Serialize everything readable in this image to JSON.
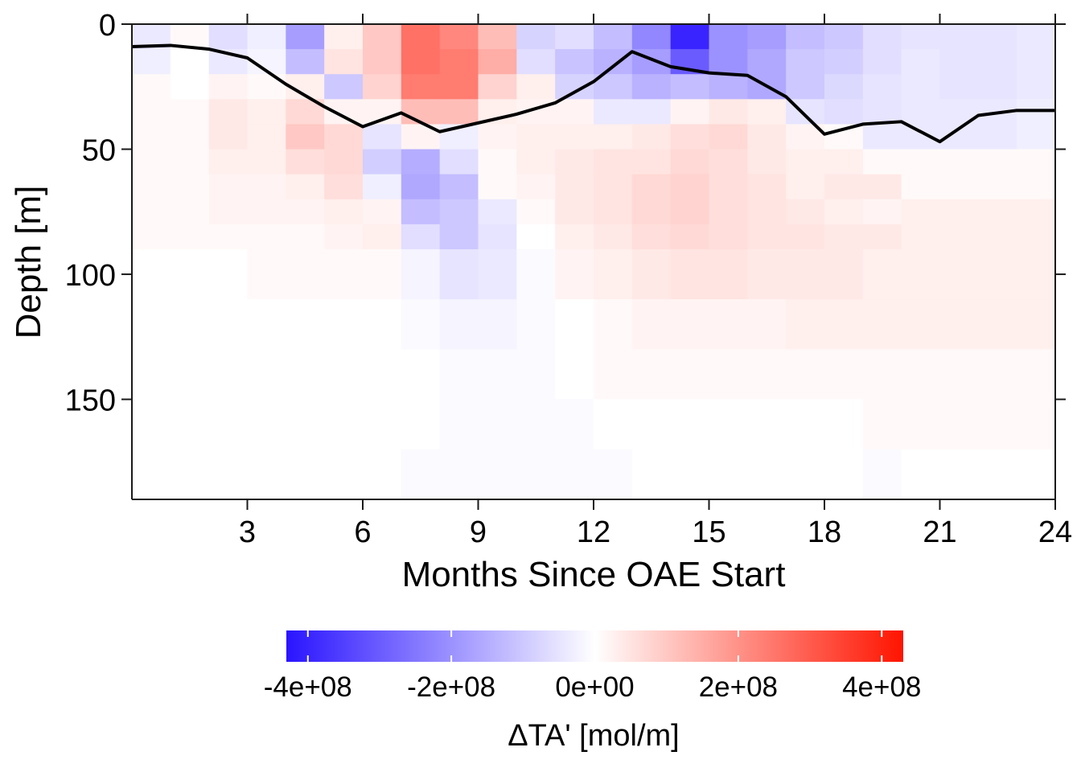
{
  "chart_data": {
    "type": "heatmap",
    "xlabel": "Months Since OAE Start",
    "ylabel": "Depth [m]",
    "xlim": [
      0,
      24
    ],
    "ylim": [
      190,
      0
    ],
    "x_ticks": [
      3,
      6,
      9,
      12,
      15,
      18,
      21,
      24
    ],
    "x_tick_labels": [
      "3",
      "6",
      "9",
      "12",
      "15",
      "18",
      "21",
      "24"
    ],
    "y_ticks": [
      0,
      50,
      100,
      150
    ],
    "y_tick_labels": [
      "0",
      "50",
      "100",
      "150"
    ],
    "depth_edges": [
      0,
      10,
      20,
      30,
      40,
      50,
      60,
      70,
      80,
      90,
      110,
      130,
      150,
      170,
      190
    ],
    "delta_ta_e8": [
      [
        -0.4,
        0.1,
        -0.6,
        -0.3,
        -1.8,
        0.3,
        1.0,
        2.6,
        2.2,
        1.2,
        -0.8,
        -0.6,
        -1.2,
        -2.2,
        -4.0,
        -2.0,
        -1.8,
        -1.2,
        -1.0,
        -0.6,
        -0.5,
        -0.5,
        -0.5,
        -0.4
      ],
      [
        -0.3,
        0.0,
        -0.4,
        -0.2,
        -1.2,
        0.5,
        1.0,
        2.6,
        2.4,
        1.5,
        -0.6,
        -1.1,
        -1.4,
        -1.8,
        -3.0,
        -2.0,
        -1.6,
        -1.0,
        -0.9,
        -0.6,
        -0.4,
        -0.5,
        -0.5,
        -0.4
      ],
      [
        0.1,
        0.0,
        0.2,
        0.1,
        0.3,
        -1.0,
        0.8,
        2.4,
        2.4,
        0.8,
        0.3,
        -0.8,
        -1.0,
        -1.4,
        -1.2,
        -1.4,
        -1.6,
        -1.0,
        -0.7,
        -0.5,
        -0.4,
        -0.5,
        -0.5,
        -0.4
      ],
      [
        0.1,
        0.1,
        0.4,
        0.3,
        0.7,
        0.2,
        0.2,
        1.2,
        1.2,
        0.3,
        0.2,
        0.2,
        -0.4,
        -0.4,
        0.2,
        0.4,
        0.3,
        -0.5,
        -0.6,
        -0.5,
        -0.4,
        -0.4,
        -0.4,
        -0.3
      ],
      [
        0.1,
        0.1,
        0.4,
        0.3,
        1.0,
        0.7,
        -0.5,
        0.2,
        -0.3,
        0.2,
        0.3,
        0.3,
        0.3,
        0.4,
        0.6,
        0.7,
        0.4,
        0.2,
        0.1,
        -0.4,
        -0.4,
        -0.4,
        -0.4,
        -0.3
      ],
      [
        0.1,
        0.1,
        0.3,
        0.3,
        0.6,
        0.7,
        -0.9,
        -1.5,
        -0.6,
        0.1,
        0.3,
        0.4,
        0.5,
        0.5,
        0.7,
        0.6,
        0.4,
        0.3,
        0.3,
        0.1,
        0.1,
        0.1,
        0.1,
        0.1
      ],
      [
        0.1,
        0.1,
        0.2,
        0.2,
        0.3,
        0.6,
        -0.3,
        -1.6,
        -1.2,
        0.1,
        0.2,
        0.4,
        0.5,
        0.7,
        0.8,
        0.6,
        0.5,
        0.3,
        0.4,
        0.4,
        0.1,
        0.1,
        0.1,
        0.1
      ],
      [
        0.1,
        0.1,
        0.2,
        0.2,
        0.2,
        0.3,
        0.2,
        -1.2,
        -1.0,
        -0.4,
        0.1,
        0.4,
        0.5,
        0.7,
        0.8,
        0.6,
        0.5,
        0.4,
        0.3,
        0.2,
        0.3,
        0.3,
        0.3,
        0.3
      ],
      [
        0.1,
        0.1,
        0.1,
        0.1,
        0.1,
        0.2,
        0.3,
        -0.6,
        -1.0,
        -0.5,
        0.0,
        0.3,
        0.4,
        0.6,
        0.7,
        0.6,
        0.5,
        0.5,
        0.4,
        0.4,
        0.3,
        0.3,
        0.3,
        0.3
      ],
      [
        0.0,
        0.0,
        0.0,
        0.1,
        0.1,
        0.1,
        0.1,
        -0.2,
        -0.5,
        -0.4,
        -0.1,
        0.2,
        0.3,
        0.4,
        0.5,
        0.5,
        0.4,
        0.4,
        0.4,
        0.3,
        0.3,
        0.3,
        0.3,
        0.3
      ],
      [
        0.0,
        0.0,
        0.0,
        0.0,
        0.0,
        0.0,
        0.0,
        -0.1,
        -0.2,
        -0.2,
        -0.1,
        0.0,
        0.1,
        0.2,
        0.2,
        0.2,
        0.2,
        0.3,
        0.3,
        0.3,
        0.3,
        0.3,
        0.3,
        0.3
      ],
      [
        0.0,
        0.0,
        0.0,
        0.0,
        0.0,
        0.0,
        0.0,
        0.0,
        -0.1,
        -0.1,
        -0.1,
        0.0,
        0.1,
        0.1,
        0.1,
        0.1,
        0.1,
        0.1,
        0.1,
        0.1,
        0.1,
        0.1,
        0.1,
        0.1
      ],
      [
        0.0,
        0.0,
        0.0,
        0.0,
        0.0,
        0.0,
        0.0,
        0.0,
        -0.1,
        -0.1,
        -0.1,
        -0.1,
        0.0,
        0.0,
        0.0,
        0.0,
        0.0,
        0.0,
        0.0,
        0.1,
        0.1,
        0.1,
        0.1,
        0.1
      ],
      [
        0.0,
        0.0,
        0.0,
        0.0,
        0.0,
        0.0,
        0.0,
        -0.1,
        -0.1,
        -0.1,
        -0.1,
        -0.1,
        -0.1,
        0.0,
        0.0,
        0.0,
        0.0,
        0.0,
        0.0,
        -0.1,
        0.0,
        0.0,
        0.0,
        0.0
      ]
    ],
    "mixed_layer_depth": {
      "x": [
        0,
        1,
        2,
        3,
        4,
        5,
        6,
        7,
        8,
        9,
        10,
        11,
        12,
        13,
        14,
        15,
        16,
        17,
        18,
        19,
        20,
        21,
        22,
        23,
        24
      ],
      "y": [
        9,
        8.5,
        10,
        13.5,
        24,
        33,
        41,
        35.5,
        43,
        39.5,
        36,
        31.5,
        23,
        11,
        17,
        19.5,
        20.5,
        29,
        44,
        40,
        39,
        47,
        36.5,
        34.5,
        34.5
      ]
    },
    "colorbar": {
      "title": "ΔTA' [mol/m]",
      "range": [
        -4.3,
        4.3
      ],
      "ticks": [
        -4,
        -2,
        0,
        2,
        4
      ],
      "tick_labels": [
        "-4e+08",
        "-2e+08",
        "0e+00",
        "2e+08",
        "4e+08"
      ],
      "color_low": "#2a14ff",
      "color_mid": "#ffffff",
      "color_high": "#ff1400"
    }
  }
}
